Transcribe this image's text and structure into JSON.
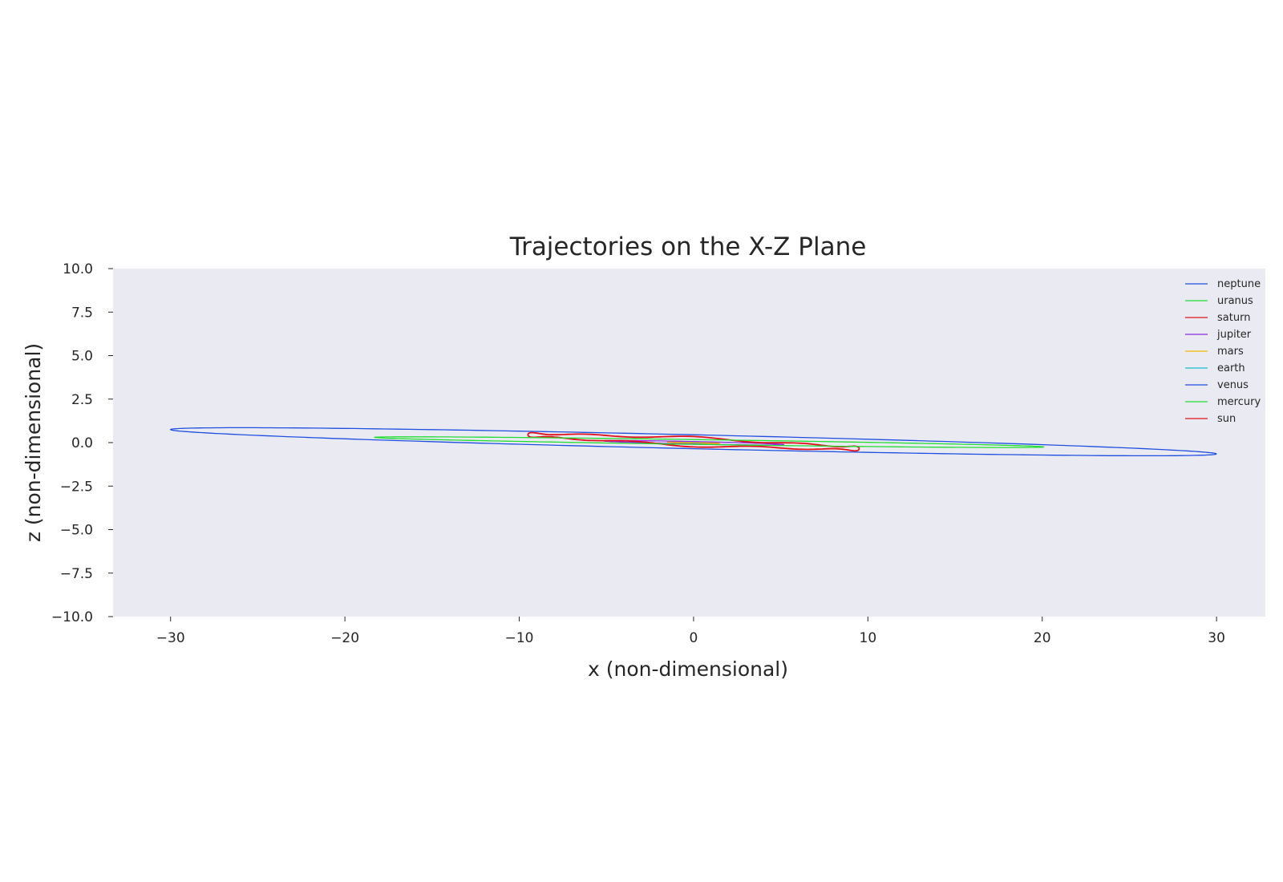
{
  "chart_data": {
    "type": "line",
    "title": "Trajectories on the X-Z Plane",
    "xlabel": "x (non-dimensional)",
    "ylabel": "z (non-dimensional)",
    "xlim": [
      -33.3,
      32.8
    ],
    "ylim": [
      -10.0,
      10.0
    ],
    "xticks": [
      -30,
      -20,
      -10,
      0,
      10,
      20,
      30
    ],
    "xtick_labels": [
      "−30",
      "−20",
      "−10",
      "0",
      "10",
      "20",
      "30"
    ],
    "yticks": [
      10.0,
      7.5,
      5.0,
      2.5,
      0.0,
      -2.5,
      -5.0,
      -7.5,
      -10.0
    ],
    "ytick_labels": [
      "10.0",
      "7.5",
      "5.0",
      "2.5",
      "0.0",
      "−2.5",
      "−5.0",
      "−7.5",
      "−10.0"
    ],
    "grid": false,
    "background": "#eaeaf2",
    "legend_position": "top-right",
    "series": [
      {
        "name": "neptune",
        "color": "#1f4fe0",
        "shape": "ellipse",
        "semi_major": 30.0,
        "center": [
          0.0,
          0.0
        ],
        "endpoints": [
          [
            -30.0,
            0.75
          ],
          [
            30.0,
            -0.65
          ]
        ],
        "max_z": 0.85
      },
      {
        "name": "uranus",
        "color": "#22dd33",
        "shape": "ellipse",
        "semi_major": 19.2,
        "center": [
          0.9,
          0.0
        ],
        "endpoints": [
          [
            -18.3,
            0.3
          ],
          [
            20.1,
            -0.25
          ]
        ],
        "max_z": 0.3
      },
      {
        "name": "saturn",
        "color": "#e0101a",
        "shape": "wobble",
        "semi_major": 9.5,
        "center": [
          0.0,
          0.05
        ],
        "endpoints": [
          [
            -9.5,
            0.45
          ],
          [
            9.5,
            -0.35
          ]
        ],
        "max_z": 0.45
      },
      {
        "name": "jupiter",
        "color": "#8a2be2",
        "shape": "ellipse",
        "semi_major": 5.2,
        "center": [
          0.0,
          0.0
        ],
        "endpoints": [
          [
            -5.2,
            0.1
          ],
          [
            5.2,
            -0.12
          ]
        ],
        "max_z": 0.15
      },
      {
        "name": "mars",
        "color": "#f5b800",
        "shape": "ellipse",
        "semi_major": 1.5,
        "center": [
          0.0,
          0.0
        ],
        "endpoints": [
          [
            -1.5,
            0.04
          ],
          [
            1.5,
            -0.05
          ]
        ],
        "max_z": 0.08
      },
      {
        "name": "earth",
        "color": "#17becf",
        "shape": "ellipse",
        "semi_major": 1.0,
        "center": [
          0.0,
          0.0
        ],
        "endpoints": [
          [
            -1.0,
            0.02
          ],
          [
            1.0,
            -0.02
          ]
        ],
        "max_z": 0.04
      },
      {
        "name": "venus",
        "color": "#1f4fe0",
        "shape": "ellipse",
        "semi_major": 0.72,
        "center": [
          0.0,
          0.0
        ],
        "endpoints": [
          [
            -0.72,
            0.02
          ],
          [
            0.72,
            -0.02
          ]
        ],
        "max_z": 0.03
      },
      {
        "name": "mercury",
        "color": "#22dd33",
        "shape": "ellipse",
        "semi_major": 0.39,
        "center": [
          0.0,
          0.0
        ],
        "endpoints": [
          [
            -0.39,
            0.01
          ],
          [
            0.39,
            -0.01
          ]
        ],
        "max_z": 0.02
      },
      {
        "name": "sun",
        "color": "#e0101a",
        "shape": "ellipse",
        "semi_major": 0.01,
        "center": [
          0.0,
          0.0
        ],
        "endpoints": [
          [
            -0.01,
            0.0
          ],
          [
            0.01,
            0.0
          ]
        ],
        "max_z": 0.01
      }
    ]
  }
}
